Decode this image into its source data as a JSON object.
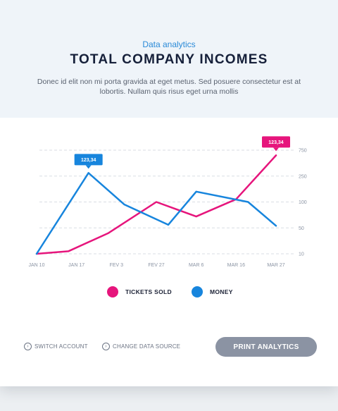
{
  "header": {
    "subtitle": "Data analytics",
    "title": "TOTAL COMPANY INCOMES",
    "description": "Donec id elit non mi porta gravida at eget metus. Sed posuere consectetur est at lobortis. Nullam quis risus eget urna mollis"
  },
  "chart_data": {
    "type": "line",
    "categories": [
      "JAN 10",
      "JAN 17",
      "FEV 3",
      "FEV 27",
      "MAR 6",
      "MAR 16",
      "MAR 27"
    ],
    "y_ticks": [
      "10",
      "50",
      "100",
      "250",
      "750"
    ],
    "grid": true,
    "series": [
      {
        "name": "TICKETS SOLD",
        "color": "#e6157c",
        "values": [
          10,
          14,
          42,
          100,
          72,
          116,
          650
        ],
        "point_x": [
          0,
          0.8,
          1.8,
          3,
          4,
          5,
          6
        ],
        "callout": {
          "index": 6,
          "label": "123,34"
        }
      },
      {
        "name": "MONEY",
        "color": "#1785dd",
        "values": [
          10,
          310,
          95,
          56,
          160,
          100,
          54
        ],
        "point_x": [
          0,
          1.3,
          2.2,
          3.3,
          4,
          5.3,
          6
        ],
        "callout": {
          "index": 1,
          "label": "123,34"
        }
      }
    ]
  },
  "legend": {
    "items": [
      {
        "label": "TICKETS SOLD",
        "color": "#e6157c"
      },
      {
        "label": "MONEY",
        "color": "#1785dd"
      }
    ]
  },
  "footer": {
    "switch_account": "SWITCH ACCOUNT",
    "change_source": "CHANGE DATA SOURCE",
    "print_button": "PRINT ANALYTICS"
  }
}
